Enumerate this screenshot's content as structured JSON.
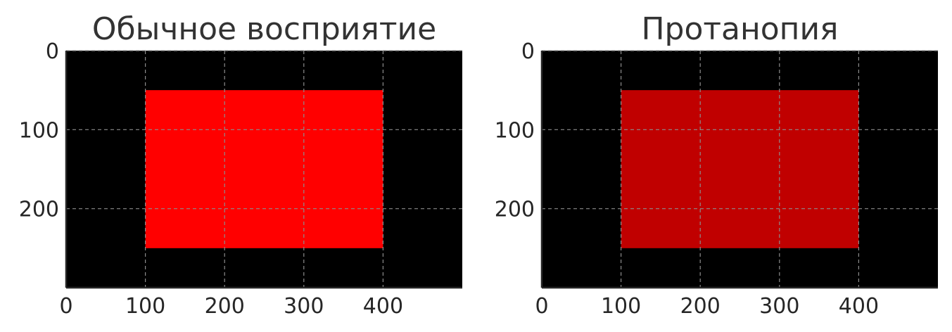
{
  "chart_data": [
    {
      "type": "heatmap",
      "title": "Обычное восприятие",
      "xlabel": "",
      "ylabel": "",
      "xlim": [
        0,
        500
      ],
      "ylim": [
        300,
        0
      ],
      "xticks": [
        0,
        100,
        200,
        300,
        400
      ],
      "yticks": [
        0,
        100,
        200
      ],
      "grid": true,
      "background_color": "#000000",
      "rect": {
        "x0": 100,
        "x1": 400,
        "y0": 50,
        "y1": 250,
        "color": "#ff0000"
      }
    },
    {
      "type": "heatmap",
      "title": "Протанопия",
      "xlabel": "",
      "ylabel": "",
      "xlim": [
        0,
        500
      ],
      "ylim": [
        300,
        0
      ],
      "xticks": [
        0,
        100,
        200,
        300,
        400
      ],
      "yticks": [
        0,
        100,
        200
      ],
      "grid": true,
      "background_color": "#000000",
      "rect": {
        "x0": 100,
        "x1": 400,
        "y0": 50,
        "y1": 250,
        "color": "#c00000"
      }
    }
  ]
}
